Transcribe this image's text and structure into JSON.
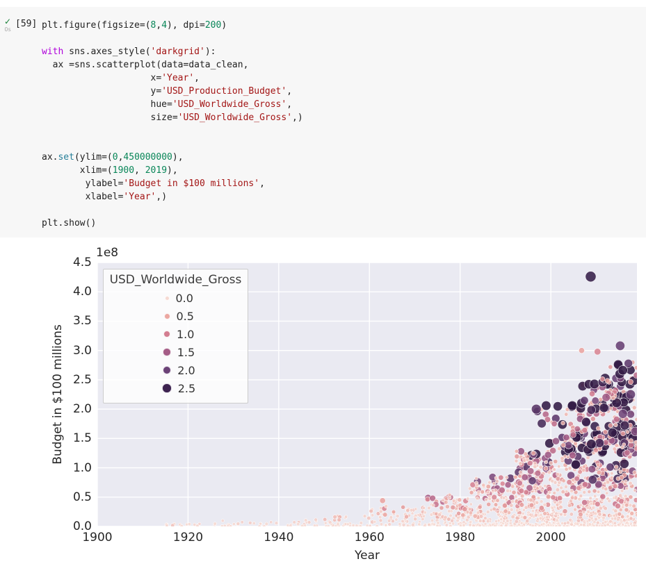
{
  "cell": {
    "status_icon": "check",
    "exec_time": "0s",
    "exec_count": "[59]",
    "code_lines": [
      [
        [
          "p",
          "plt.figure(figsize=("
        ],
        [
          "n",
          "8"
        ],
        [
          "p",
          ","
        ],
        [
          "n",
          "4"
        ],
        [
          "p",
          "), dpi="
        ],
        [
          "n",
          "200"
        ],
        [
          "p",
          ")"
        ]
      ],
      [],
      [
        [
          "k",
          "with"
        ],
        [
          "p",
          " sns.axes_style("
        ],
        [
          "s",
          "'darkgrid'"
        ],
        [
          "p",
          "):"
        ]
      ],
      [
        [
          "p",
          "  ax =sns.scatterplot(data=data_clean,"
        ]
      ],
      [
        [
          "p",
          "                    x="
        ],
        [
          "s",
          "'Year'"
        ],
        [
          "p",
          ","
        ]
      ],
      [
        [
          "p",
          "                    y="
        ],
        [
          "s",
          "'USD_Production_Budget'"
        ],
        [
          "p",
          ","
        ]
      ],
      [
        [
          "p",
          "                    hue="
        ],
        [
          "s",
          "'USD_Worldwide_Gross'"
        ],
        [
          "p",
          ","
        ]
      ],
      [
        [
          "p",
          "                    size="
        ],
        [
          "s",
          "'USD_Worldwide_Gross'"
        ],
        [
          "p",
          ",)"
        ]
      ],
      [],
      [],
      [
        [
          "p",
          "ax."
        ],
        [
          "b",
          "set"
        ],
        [
          "p",
          "(ylim=("
        ],
        [
          "n",
          "0"
        ],
        [
          "p",
          ","
        ],
        [
          "n",
          "450000000"
        ],
        [
          "p",
          "),"
        ]
      ],
      [
        [
          "p",
          "       xlim=("
        ],
        [
          "n",
          "1900"
        ],
        [
          "p",
          ", "
        ],
        [
          "n",
          "2019"
        ],
        [
          "p",
          "),"
        ]
      ],
      [
        [
          "p",
          "        ylabel="
        ],
        [
          "s",
          "'Budget in $100 millions'"
        ],
        [
          "p",
          ","
        ]
      ],
      [
        [
          "p",
          "        xlabel="
        ],
        [
          "s",
          "'Year'"
        ],
        [
          "p",
          ",)"
        ]
      ],
      [],
      [
        [
          "p",
          "plt.show()"
        ]
      ]
    ]
  },
  "chart_data": {
    "type": "scatter",
    "xlabel": "Year",
    "ylabel": "Budget in $100 millions",
    "y_offset_text": "1e8",
    "xlim": [
      1900,
      2019
    ],
    "ylim": [
      0,
      450000000
    ],
    "ylim_1e8": [
      0,
      4.5
    ],
    "grid": true,
    "background": "#eaeaf2",
    "grid_color": "#ffffff",
    "x_ticks": [
      {
        "v": 1900,
        "label": "1900"
      },
      {
        "v": 1920,
        "label": "1920"
      },
      {
        "v": 1940,
        "label": "1940"
      },
      {
        "v": 1960,
        "label": "1960"
      },
      {
        "v": 1980,
        "label": "1980"
      },
      {
        "v": 2000,
        "label": "2000"
      }
    ],
    "y_ticks": [
      {
        "v": 0,
        "label": "0.0"
      },
      {
        "v": 0.5,
        "label": "0.5"
      },
      {
        "v": 1,
        "label": "1.0"
      },
      {
        "v": 1.5,
        "label": "1.5"
      },
      {
        "v": 2,
        "label": "2.0"
      },
      {
        "v": 2.5,
        "label": "2.5"
      },
      {
        "v": 3,
        "label": "3.0"
      },
      {
        "v": 3.5,
        "label": "3.5"
      },
      {
        "v": 4,
        "label": "4.0"
      },
      {
        "v": 4.5,
        "label": "4.5"
      }
    ],
    "palette_stops": [
      [
        0,
        "#f6dad3"
      ],
      [
        0.5,
        "#eba7a1"
      ],
      [
        1,
        "#d37d90"
      ],
      [
        1.5,
        "#a55d87"
      ],
      [
        2,
        "#6b4277"
      ],
      [
        2.5,
        "#3d2350"
      ],
      [
        2.8,
        "#2c163e"
      ]
    ],
    "legend": {
      "title": "USD_Worldwide_Gross",
      "position": "upper-left",
      "entries": [
        {
          "label": "0.0",
          "value": 0.0,
          "size": 7
        },
        {
          "label": "0.5",
          "value": 0.5,
          "size": 9
        },
        {
          "label": "1.0",
          "value": 1.0,
          "size": 10
        },
        {
          "label": "1.5",
          "value": 1.5,
          "size": 11.5
        },
        {
          "label": "2.0",
          "value": 2.0,
          "size": 12.5
        },
        {
          "label": "2.5",
          "value": 2.5,
          "size": 13.5
        }
      ]
    },
    "notable_points": [
      {
        "year": 2008.8,
        "budget_1e8": 4.26,
        "gross_1e9": 2.62
      },
      {
        "year": 1996.8,
        "budget_1e8": 2.0,
        "gross_1e9": 2.2
      },
      {
        "year": 2015.3,
        "budget_1e8": 3.08,
        "gross_1e9": 2.05
      },
      {
        "year": 2006.8,
        "budget_1e8": 3.0,
        "gross_1e9": 0.55
      },
      {
        "year": 2010.3,
        "budget_1e8": 2.98,
        "gross_1e9": 0.9
      },
      {
        "year": 2017.6,
        "budget_1e8": 2.25,
        "gross_1e9": 2.1
      },
      {
        "year": 2015.9,
        "budget_1e8": 1.92,
        "gross_1e9": 1.95
      },
      {
        "year": 2012.2,
        "budget_1e8": 2.2,
        "gross_1e9": 1.55
      },
      {
        "year": 2018.6,
        "budget_1e8": 1.62,
        "gross_1e9": 1.8
      },
      {
        "year": 1962.9,
        "budget_1e8": 0.44,
        "gross_1e9": 0.55
      }
    ],
    "clusters": [
      {
        "years": [
          1913,
          1930
        ],
        "budget_1e8": [
          0,
          0.06
        ],
        "count": 14,
        "gross_bias": 1,
        "b_skew": 1.2,
        "yr_skew": 1
      },
      {
        "years": [
          1915,
          1917
        ],
        "budget_1e8": [
          0,
          0.05
        ],
        "count": 3,
        "gross_bias": 8,
        "b_skew": 1,
        "yr_skew": 1
      },
      {
        "years": [
          1925,
          1945
        ],
        "budget_1e8": [
          0,
          0.1
        ],
        "count": 25,
        "gross_bias": 1.5,
        "b_skew": 1.3,
        "yr_skew": 1
      },
      {
        "years": [
          1945,
          1960
        ],
        "budget_1e8": [
          0,
          0.18
        ],
        "count": 45,
        "gross_bias": 1.5,
        "b_skew": 1.4,
        "yr_skew": 1
      },
      {
        "years": [
          1960,
          1972
        ],
        "budget_1e8": [
          0,
          0.35
        ],
        "count": 70,
        "gross_bias": 1.3,
        "b_skew": 1.5,
        "yr_skew": 1
      },
      {
        "years": [
          1972,
          1982
        ],
        "budget_1e8": [
          0,
          0.55
        ],
        "count": 110,
        "gross_bias": 1.3,
        "b_skew": 1.6,
        "yr_skew": 1
      },
      {
        "years": [
          1982,
          1992
        ],
        "budget_1e8": [
          0,
          0.85
        ],
        "count": 200,
        "gross_bias": 1.2,
        "b_skew": 1.6,
        "yr_skew": 1
      },
      {
        "years": [
          1992,
          2002
        ],
        "budget_1e8": [
          0,
          1.3
        ],
        "count": 330,
        "gross_bias": 1.1,
        "b_skew": 1.7,
        "yr_skew": 0.9
      },
      {
        "years": [
          2002,
          2019
        ],
        "budget_1e8": [
          0,
          1.6
        ],
        "count": 520,
        "gross_bias": 1.2,
        "b_skew": 1.7,
        "yr_skew": 0.85
      },
      {
        "years": [
          1996,
          2019
        ],
        "budget_1e8": [
          1.3,
          2.1
        ],
        "count": 150,
        "gross_bias": 1.2,
        "b_skew": 1,
        "yr_skew": 0.6
      },
      {
        "years": [
          2006,
          2019
        ],
        "budget_1e8": [
          2.1,
          2.45
        ],
        "count": 45,
        "gross_bias": 1.2,
        "b_skew": 1,
        "yr_skew": 0.7
      },
      {
        "years": [
          2011,
          2019
        ],
        "budget_1e8": [
          2.45,
          2.55
        ],
        "count": 12,
        "gross_bias": 1.5,
        "b_skew": 1,
        "yr_skew": 1
      },
      {
        "years": [
          2012,
          2019
        ],
        "budget_1e8": [
          2.55,
          2.8
        ],
        "count": 10,
        "gross_bias": 1.3,
        "b_skew": 1,
        "yr_skew": 1
      }
    ],
    "seed": 59
  }
}
